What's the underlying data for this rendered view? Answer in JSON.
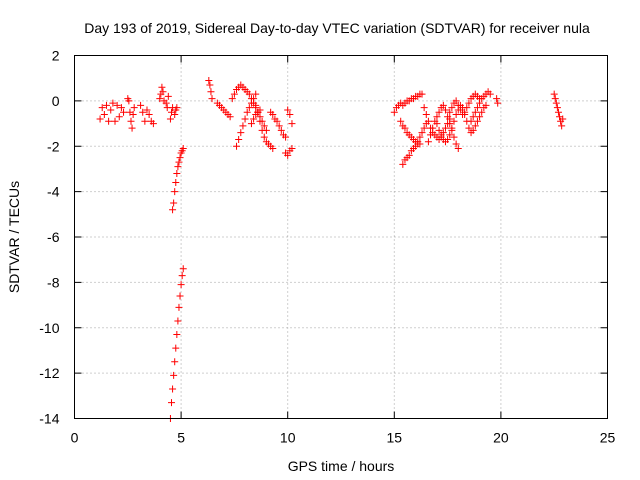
{
  "chart_data": {
    "type": "scatter",
    "title": "Day 193 of 2019, Sidereal Day-to-day VTEC variation (SDTVAR) for receiver nula",
    "xlabel": "GPS time / hours",
    "ylabel": "SDTVAR / TECUs",
    "xlim": [
      0,
      25
    ],
    "ylim": [
      -14,
      2
    ],
    "xticks": [
      0,
      5,
      10,
      15,
      20,
      25
    ],
    "yticks": [
      2,
      0,
      -2,
      -4,
      -6,
      -8,
      -10,
      -12,
      -14
    ],
    "grid": true,
    "marker": "+",
    "color": "#ff0000",
    "series": [
      {
        "name": "SDTVAR",
        "segments": [
          {
            "x": [
              1.2,
              1.3,
              1.4,
              1.5,
              1.6,
              1.7,
              1.8
            ],
            "y": [
              -0.8,
              -0.3,
              -0.6,
              -0.2,
              -0.9,
              -0.4,
              -0.1
            ]
          },
          {
            "x": [
              1.9,
              2.0,
              2.1,
              2.2,
              2.3
            ],
            "y": [
              -0.9,
              -0.2,
              -0.7,
              -0.3,
              -0.5
            ]
          },
          {
            "x": [
              2.5,
              2.55,
              2.6,
              2.65,
              2.7,
              2.75,
              2.8
            ],
            "y": [
              0.1,
              0.0,
              -0.5,
              -0.9,
              -1.2,
              -0.6,
              -0.3
            ]
          },
          {
            "x": [
              3.1,
              3.2,
              3.3,
              3.4
            ],
            "y": [
              -0.2,
              -0.5,
              -0.9,
              -0.4
            ]
          },
          {
            "x": [
              3.5,
              3.6,
              3.7
            ],
            "y": [
              -0.6,
              -0.9,
              -1.0
            ]
          },
          {
            "x": [
              4.0,
              4.05,
              4.1,
              4.15,
              4.2
            ],
            "y": [
              0.1,
              0.3,
              0.6,
              0.4,
              0.0
            ]
          },
          {
            "x": [
              4.3,
              4.35,
              4.4
            ],
            "y": [
              -0.1,
              -0.3,
              0.2
            ]
          },
          {
            "x": [
              4.5,
              4.55,
              4.6
            ],
            "y": [
              -0.8,
              -0.5,
              -0.3
            ]
          },
          {
            "x": [
              4.7,
              4.75,
              4.8
            ],
            "y": [
              -0.6,
              -0.4,
              -0.3
            ]
          },
          {
            "x": [
              4.6,
              4.65,
              4.7,
              4.75,
              4.8,
              4.85,
              4.9,
              4.95,
              5.0,
              5.05,
              5.1
            ],
            "y": [
              -4.8,
              -4.5,
              -4.0,
              -3.6,
              -3.2,
              -2.9,
              -2.7,
              -2.5,
              -2.3,
              -2.2,
              -2.1
            ]
          },
          {
            "x": [
              4.5,
              4.55,
              4.6,
              4.65,
              4.7,
              4.75,
              4.8,
              4.85,
              4.9,
              4.95,
              5.0,
              5.05,
              5.1
            ],
            "y": [
              -14.0,
              -13.3,
              -12.7,
              -12.1,
              -11.5,
              -10.9,
              -10.3,
              -9.7,
              -9.1,
              -8.6,
              -8.1,
              -7.7,
              -7.4
            ]
          },
          {
            "x": [
              6.3,
              6.35,
              6.4,
              6.45
            ],
            "y": [
              0.9,
              0.7,
              0.4,
              0.1
            ]
          },
          {
            "x": [
              6.7,
              6.8,
              6.9,
              7.0,
              7.1,
              7.2,
              7.3
            ],
            "y": [
              -0.1,
              -0.2,
              -0.3,
              -0.4,
              -0.5,
              -0.6,
              -0.7
            ]
          },
          {
            "x": [
              7.4,
              7.5,
              7.6,
              7.7,
              7.8,
              7.9,
              8.0,
              8.1,
              8.2,
              8.3,
              8.4,
              8.5,
              8.6,
              8.7,
              8.8,
              8.9,
              9.0
            ],
            "y": [
              0.1,
              0.3,
              0.5,
              0.6,
              0.7,
              0.6,
              0.5,
              0.4,
              0.3,
              0.1,
              -0.1,
              -0.3,
              -0.5,
              -0.7,
              -0.9,
              -1.1,
              -1.3
            ]
          },
          {
            "x": [
              7.6,
              7.7,
              7.8,
              7.9,
              8.0,
              8.1,
              8.2,
              8.3,
              8.4,
              8.5
            ],
            "y": [
              -2.0,
              -1.7,
              -1.4,
              -1.1,
              -0.8,
              -0.5,
              -0.3,
              -0.1,
              0.1,
              0.3
            ]
          },
          {
            "x": [
              8.5,
              8.6,
              8.7,
              8.8,
              8.9,
              9.0,
              9.1,
              9.2,
              9.3
            ],
            "y": [
              -0.2,
              -0.5,
              -0.9,
              -1.3,
              -1.6,
              -1.8,
              -1.9,
              -2.0,
              -2.1
            ]
          },
          {
            "x": [
              8.3,
              8.4,
              8.5,
              8.6,
              8.7
            ],
            "y": [
              -1.0,
              -0.8,
              -0.6,
              -0.5,
              -0.4
            ]
          },
          {
            "x": [
              9.2,
              9.3,
              9.4,
              9.5,
              9.6,
              9.7,
              9.8,
              9.9
            ],
            "y": [
              -0.5,
              -0.6,
              -0.8,
              -0.9,
              -1.1,
              -1.3,
              -1.5,
              -1.6
            ]
          },
          {
            "x": [
              9.9,
              10.0,
              10.1,
              10.2
            ],
            "y": [
              -2.3,
              -2.4,
              -2.2,
              -2.1
            ]
          },
          {
            "x": [
              10.0,
              10.1,
              10.2
            ],
            "y": [
              -0.4,
              -0.6,
              -1.0
            ]
          },
          {
            "x": [
              15.0,
              15.1,
              15.2,
              15.3
            ],
            "y": [
              -0.5,
              -0.3,
              -0.2,
              -0.1
            ]
          },
          {
            "x": [
              15.4,
              15.5,
              15.6,
              15.7,
              15.8,
              15.9,
              16.0,
              16.1,
              16.2,
              16.3
            ],
            "y": [
              -0.2,
              -0.1,
              0.0,
              0.0,
              0.1,
              0.1,
              0.2,
              0.2,
              0.3,
              0.3
            ]
          },
          {
            "x": [
              15.3,
              15.4,
              15.5,
              15.6,
              15.7,
              15.8,
              15.9,
              16.0,
              16.1,
              16.2
            ],
            "y": [
              -0.9,
              -1.1,
              -1.2,
              -1.4,
              -1.5,
              -1.6,
              -1.7,
              -1.8,
              -1.9,
              -1.9
            ]
          },
          {
            "x": [
              15.4,
              15.5,
              15.6,
              15.7,
              15.8,
              15.9,
              16.0,
              16.1,
              16.2,
              16.3,
              16.4,
              16.5
            ],
            "y": [
              -2.8,
              -2.6,
              -2.5,
              -2.4,
              -2.2,
              -2.1,
              -2.0,
              -1.8,
              -1.6,
              -1.4,
              -1.2,
              -1.0
            ]
          },
          {
            "x": [
              16.4,
              16.5,
              16.6,
              16.7,
              16.8,
              16.9,
              17.0,
              17.1,
              17.2,
              17.3,
              17.4,
              17.5,
              17.6
            ],
            "y": [
              -0.3,
              -0.6,
              -0.9,
              -1.2,
              -1.4,
              -1.5,
              -1.6,
              -1.7,
              -1.6,
              -1.4,
              -1.2,
              -1.0,
              -0.8
            ]
          },
          {
            "x": [
              16.6,
              16.7,
              16.8,
              16.9,
              17.0,
              17.1,
              17.2,
              17.3,
              17.4,
              17.5,
              17.6,
              17.7,
              17.8,
              17.9,
              18.0
            ],
            "y": [
              -1.8,
              -1.5,
              -1.2,
              -0.9,
              -0.7,
              -0.5,
              -0.3,
              -0.2,
              -0.4,
              -0.7,
              -1.0,
              -1.3,
              -1.6,
              -1.9,
              -2.1
            ]
          },
          {
            "x": [
              17.0,
              17.1,
              17.2,
              17.3,
              17.4,
              17.5,
              17.6,
              17.7,
              17.8,
              17.9,
              18.0,
              18.1,
              18.2,
              18.3,
              18.4,
              18.5,
              18.6
            ],
            "y": [
              -1.0,
              -1.3,
              -1.5,
              -1.7,
              -1.8,
              -1.7,
              -1.5,
              -1.2,
              -0.9,
              -0.6,
              -0.4,
              -0.2,
              -0.3,
              -0.6,
              -0.9,
              -1.2,
              -1.4
            ]
          },
          {
            "x": [
              17.6,
              17.7,
              17.8,
              17.9,
              18.0,
              18.1,
              18.2,
              18.3,
              18.4,
              18.5,
              18.6,
              18.7,
              18.8,
              18.9,
              19.0
            ],
            "y": [
              -0.5,
              -0.3,
              -0.1,
              0.0,
              -0.2,
              -0.4,
              -0.6,
              -0.5,
              -0.3,
              -0.1,
              0.1,
              0.2,
              0.3,
              0.2,
              0.1
            ]
          },
          {
            "x": [
              18.6,
              18.7,
              18.8,
              18.9,
              19.0,
              19.1,
              19.2,
              19.3,
              19.4,
              19.5
            ],
            "y": [
              -0.9,
              -0.7,
              -0.5,
              -0.3,
              -0.1,
              0.1,
              0.2,
              0.3,
              0.4,
              0.3
            ]
          },
          {
            "x": [
              18.7,
              18.8,
              18.9,
              19.0,
              19.1,
              19.2,
              19.3
            ],
            "y": [
              -1.3,
              -1.1,
              -0.9,
              -0.7,
              -0.5,
              -0.3,
              -0.2
            ]
          },
          {
            "x": [
              19.8,
              19.85
            ],
            "y": [
              0.1,
              -0.1
            ]
          },
          {
            "x": [
              22.5,
              22.55,
              22.6,
              22.65,
              22.7,
              22.75,
              22.8,
              22.85,
              22.9
            ],
            "y": [
              0.3,
              0.1,
              -0.1,
              -0.3,
              -0.5,
              -0.7,
              -0.9,
              -1.1,
              -0.8
            ]
          }
        ]
      }
    ]
  }
}
